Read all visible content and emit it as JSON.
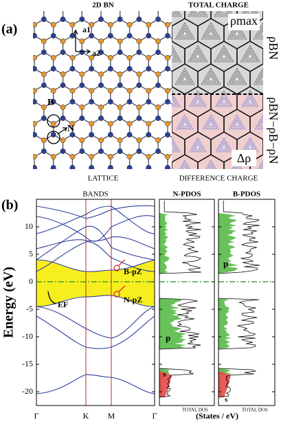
{
  "panel_a": {
    "label": "(a)",
    "lattice_title": "2D BN",
    "charge_title": "TOTAL CHARGE",
    "rho_max": "ρmax",
    "rho_bn": "ρBN",
    "rho_diff": "ρBN−ρB−ρN",
    "delta_rho": "Δρ",
    "lattice_caption": "LATTICE",
    "charge_caption": "DIFFERENCE CHARGE",
    "a1": "a1",
    "a2": "a2",
    "atom_b": "B",
    "atom_n": "N"
  },
  "panel_b": {
    "label": "(b)",
    "bands_title": "BANDS",
    "n_pdos_title": "N-PDOS",
    "b_pdos_title": "B-PDOS",
    "y_label": "Energy (eV)",
    "x_label": "(States / eV)",
    "ylim": [
      -22.5,
      15
    ],
    "yticks": [
      10,
      5,
      0,
      -5,
      -10,
      -15,
      -20
    ],
    "kpoints": [
      "Γ",
      "K",
      "M",
      "Γ"
    ],
    "band_labels": {
      "b_pz": "B-pZ",
      "n_pz": "N-pZ",
      "ef": "EF"
    },
    "pdos_labels": {
      "n_p": "p",
      "n_s": "s",
      "b_p": "p",
      "b_s": "s",
      "n_total": "TOTAL DOS",
      "b_total": "TOTAL DOS"
    }
  }
}
